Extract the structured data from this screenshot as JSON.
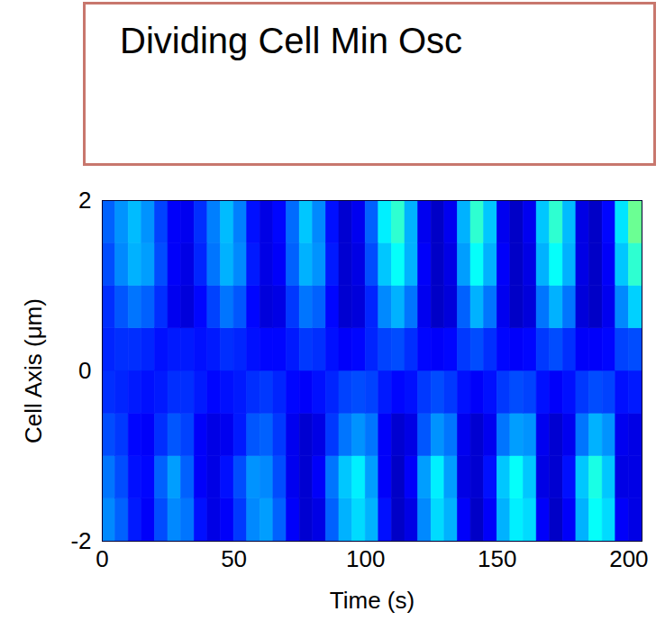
{
  "chart_data": {
    "type": "heatmap",
    "title": "Dividing Cell Min Osc",
    "x_label": "Time (s)",
    "y_label": "Cell Axis (μm)",
    "xlim": [
      0,
      205
    ],
    "ylim": [
      -2,
      2
    ],
    "xticks": [
      0,
      50,
      100,
      150,
      200
    ],
    "yticks": [
      -2,
      0,
      2
    ],
    "zlim": [
      0,
      1
    ],
    "x_bins": [
      0,
      5,
      10,
      15,
      20,
      25,
      30,
      35,
      40,
      45,
      50,
      55,
      60,
      65,
      70,
      75,
      80,
      85,
      90,
      95,
      100,
      105,
      110,
      115,
      120,
      125,
      130,
      135,
      140,
      145,
      150,
      155,
      160,
      165,
      170,
      175,
      180,
      185,
      190,
      195,
      200,
      205
    ],
    "y_bins": [
      -2,
      -1.5,
      -1,
      -0.5,
      0,
      0.5,
      1,
      1.5,
      2
    ],
    "values": [
      [
        0.26,
        0.22,
        0.15,
        0.12,
        0.2,
        0.26,
        0.24,
        0.14,
        0.1,
        0.12,
        0.18,
        0.26,
        0.28,
        0.22,
        0.12,
        0.08,
        0.1,
        0.22,
        0.3,
        0.34,
        0.3,
        0.14,
        0.07,
        0.1,
        0.26,
        0.34,
        0.3,
        0.12,
        0.07,
        0.12,
        0.3,
        0.36,
        0.34,
        0.12,
        0.07,
        0.12,
        0.3,
        0.38,
        0.34,
        0.12,
        0.1
      ],
      [
        0.24,
        0.2,
        0.14,
        0.13,
        0.22,
        0.28,
        0.22,
        0.12,
        0.1,
        0.14,
        0.2,
        0.27,
        0.26,
        0.2,
        0.11,
        0.08,
        0.12,
        0.24,
        0.32,
        0.36,
        0.28,
        0.12,
        0.07,
        0.12,
        0.28,
        0.36,
        0.28,
        0.1,
        0.08,
        0.14,
        0.32,
        0.38,
        0.32,
        0.1,
        0.08,
        0.14,
        0.32,
        0.4,
        0.32,
        0.1,
        0.1
      ],
      [
        0.2,
        0.18,
        0.13,
        0.12,
        0.17,
        0.21,
        0.19,
        0.12,
        0.1,
        0.11,
        0.15,
        0.21,
        0.22,
        0.18,
        0.11,
        0.08,
        0.1,
        0.18,
        0.24,
        0.27,
        0.24,
        0.12,
        0.08,
        0.1,
        0.21,
        0.27,
        0.24,
        0.11,
        0.08,
        0.11,
        0.24,
        0.28,
        0.27,
        0.11,
        0.08,
        0.11,
        0.24,
        0.3,
        0.27,
        0.11,
        0.1
      ],
      [
        0.17,
        0.16,
        0.15,
        0.14,
        0.15,
        0.17,
        0.17,
        0.15,
        0.13,
        0.14,
        0.15,
        0.17,
        0.18,
        0.16,
        0.13,
        0.12,
        0.14,
        0.16,
        0.19,
        0.2,
        0.19,
        0.15,
        0.13,
        0.14,
        0.18,
        0.2,
        0.18,
        0.14,
        0.12,
        0.14,
        0.18,
        0.2,
        0.19,
        0.14,
        0.12,
        0.14,
        0.18,
        0.2,
        0.19,
        0.14,
        0.15
      ],
      [
        0.16,
        0.17,
        0.17,
        0.16,
        0.14,
        0.15,
        0.15,
        0.14,
        0.15,
        0.17,
        0.16,
        0.14,
        0.13,
        0.13,
        0.15,
        0.18,
        0.17,
        0.14,
        0.12,
        0.13,
        0.16,
        0.19,
        0.2,
        0.17,
        0.13,
        0.12,
        0.13,
        0.18,
        0.2,
        0.17,
        0.13,
        0.12,
        0.13,
        0.18,
        0.2,
        0.17,
        0.12,
        0.12,
        0.13,
        0.19,
        0.2
      ],
      [
        0.17,
        0.21,
        0.24,
        0.22,
        0.17,
        0.11,
        0.09,
        0.13,
        0.19,
        0.24,
        0.21,
        0.13,
        0.09,
        0.1,
        0.18,
        0.24,
        0.22,
        0.13,
        0.08,
        0.09,
        0.16,
        0.26,
        0.3,
        0.24,
        0.11,
        0.07,
        0.09,
        0.22,
        0.3,
        0.24,
        0.11,
        0.07,
        0.09,
        0.24,
        0.3,
        0.24,
        0.09,
        0.07,
        0.11,
        0.26,
        0.33
      ],
      [
        0.2,
        0.26,
        0.3,
        0.28,
        0.2,
        0.12,
        0.1,
        0.16,
        0.24,
        0.3,
        0.26,
        0.15,
        0.1,
        0.12,
        0.22,
        0.3,
        0.27,
        0.15,
        0.08,
        0.1,
        0.2,
        0.32,
        0.38,
        0.3,
        0.12,
        0.07,
        0.1,
        0.28,
        0.38,
        0.3,
        0.12,
        0.07,
        0.1,
        0.3,
        0.38,
        0.3,
        0.1,
        0.07,
        0.12,
        0.32,
        0.42
      ],
      [
        0.22,
        0.27,
        0.31,
        0.27,
        0.19,
        0.12,
        0.11,
        0.17,
        0.25,
        0.31,
        0.25,
        0.14,
        0.1,
        0.13,
        0.23,
        0.32,
        0.26,
        0.14,
        0.08,
        0.11,
        0.22,
        0.36,
        0.42,
        0.3,
        0.11,
        0.07,
        0.11,
        0.3,
        0.42,
        0.32,
        0.11,
        0.07,
        0.11,
        0.32,
        0.42,
        0.31,
        0.1,
        0.07,
        0.13,
        0.35,
        0.48
      ]
    ]
  }
}
